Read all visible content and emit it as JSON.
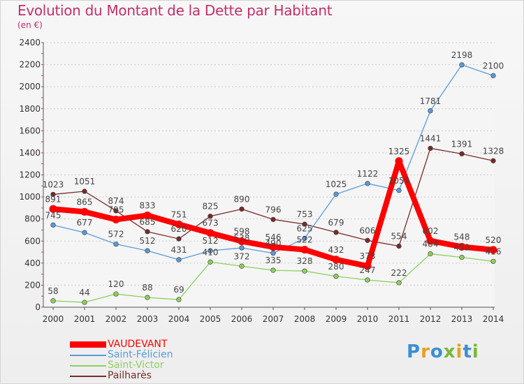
{
  "header": {
    "title": "Evolution du Montant de la Dette par Habitant",
    "subtitle": "(en €)"
  },
  "logo": {
    "text": "Proxiti",
    "letter_colors": [
      "#3a8fd6",
      "#e8a020",
      "#3a8fd6",
      "#7ab83a",
      "#e8a020",
      "#3a8fd6",
      "#7ab83a"
    ]
  },
  "chart_data": {
    "type": "line",
    "x": [
      "2000",
      "2001",
      "2002",
      "2003",
      "2004",
      "2005",
      "2006",
      "2007",
      "2008",
      "2009",
      "2010",
      "2011",
      "2012",
      "2013",
      "2014"
    ],
    "ylim": [
      0,
      2400
    ],
    "yticks": [
      0,
      200,
      400,
      600,
      800,
      1000,
      1200,
      1400,
      1600,
      1800,
      2000,
      2200,
      2400
    ],
    "grid": "horizontal dashed",
    "legend_position": "bottom-left",
    "series": [
      {
        "name": "Pailharès",
        "color": "#7a2a2a",
        "highlight": false,
        "values": [
          1023,
          1051,
          874,
          685,
          620,
          825,
          890,
          796,
          753,
          679,
          606,
          554,
          1441,
          1391,
          1328
        ]
      },
      {
        "name": "Saint-Félicien",
        "color": "#5a9bd8",
        "highlight": false,
        "values": [
          745,
          677,
          572,
          512,
          431,
          512,
          538,
          490,
          625,
          1025,
          1122,
          1059,
          1781,
          2198,
          2100
        ]
      },
      {
        "name": "Saint-Victor",
        "color": "#8ed060",
        "highlight": false,
        "values": [
          58,
          44,
          120,
          88,
          69,
          410,
          372,
          335,
          328,
          280,
          247,
          222,
          484,
          452,
          416
        ]
      },
      {
        "name": "VAUDEVANT",
        "color": "#ff0000",
        "highlight": true,
        "values": [
          891,
          865,
          795,
          833,
          751,
          673,
          598,
          546,
          522,
          432,
          373,
          1325,
          602,
          548,
          520
        ]
      }
    ],
    "legend_order": [
      "VAUDEVANT",
      "Saint-Félicien",
      "Saint-Victor",
      "Pailharès"
    ]
  }
}
